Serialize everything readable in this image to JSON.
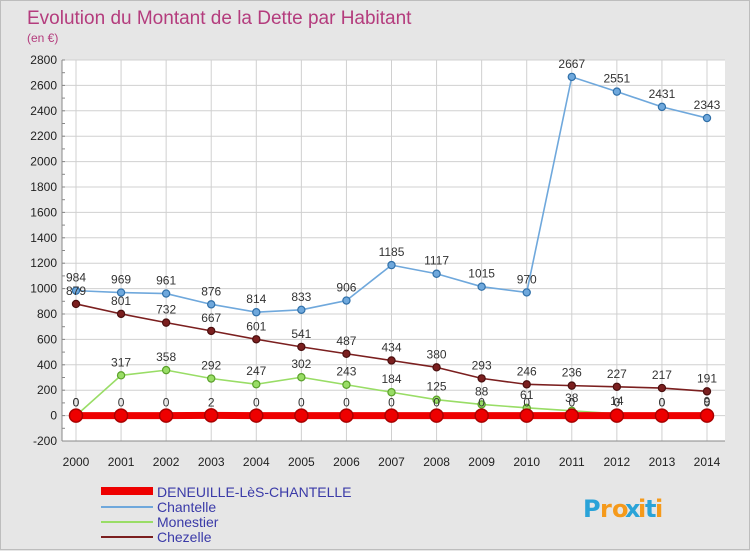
{
  "chart_data": {
    "type": "line",
    "title": "Evolution du Montant de la Dette par Habitant",
    "subtitle": "(en €)",
    "x": [
      "2000",
      "2001",
      "2002",
      "2003",
      "2004",
      "2005",
      "2006",
      "2007",
      "2008",
      "2009",
      "2010",
      "2011",
      "2012",
      "2013",
      "2014"
    ],
    "ylim": [
      -200,
      2800
    ],
    "yticks": [
      -200,
      0,
      200,
      400,
      600,
      800,
      1000,
      1200,
      1400,
      1600,
      1800,
      2000,
      2200,
      2400,
      2600,
      2800
    ],
    "grid": true,
    "legend_placement": "bottom-left",
    "series": [
      {
        "name": "DENEUILLE-LèS-CHANTELLE",
        "color": "#ee0000",
        "values": [
          0,
          0,
          0,
          2,
          0,
          0,
          0,
          0,
          0,
          0,
          0,
          0,
          0,
          0,
          0
        ]
      },
      {
        "name": "Chantelle",
        "color": "#6fa8dc",
        "values": [
          984,
          969,
          961,
          876,
          814,
          833,
          906,
          1185,
          1117,
          1015,
          970,
          2667,
          2551,
          2431,
          2343
        ]
      },
      {
        "name": "Monestier",
        "color": "#99dd66",
        "values": [
          0,
          317,
          358,
          292,
          247,
          302,
          243,
          184,
          125,
          88,
          61,
          38,
          14,
          0,
          9
        ]
      },
      {
        "name": "Chezelle",
        "color": "#7b1f1f",
        "values": [
          879,
          801,
          732,
          667,
          601,
          541,
          487,
          434,
          380,
          293,
          246,
          236,
          227,
          217,
          191
        ]
      }
    ]
  },
  "watermark": {
    "text": "Proxiti"
  }
}
